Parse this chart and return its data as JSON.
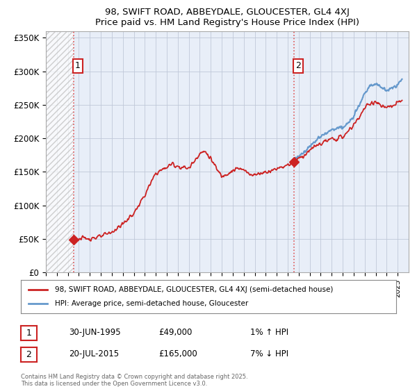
{
  "title_line1": "98, SWIFT ROAD, ABBEYDALE, GLOUCESTER, GL4 4XJ",
  "title_line2": "Price paid vs. HM Land Registry's House Price Index (HPI)",
  "ylim": [
    0,
    360000
  ],
  "yticks": [
    0,
    50000,
    100000,
    150000,
    200000,
    250000,
    300000,
    350000
  ],
  "ytick_labels": [
    "£0",
    "£50K",
    "£100K",
    "£150K",
    "£200K",
    "£250K",
    "£300K",
    "£350K"
  ],
  "sale1_date": 1995.5,
  "sale1_price": 49000,
  "sale2_date": 2015.55,
  "sale2_price": 165000,
  "hpi_color": "#6699cc",
  "price_color": "#cc2222",
  "annotation1_label": "1",
  "annotation2_label": "2",
  "legend_label1": "98, SWIFT ROAD, ABBEYDALE, GLOUCESTER, GL4 4XJ (semi-detached house)",
  "legend_label2": "HPI: Average price, semi-detached house, Gloucester",
  "info1_num": "1",
  "info1_date": "30-JUN-1995",
  "info1_price": "£49,000",
  "info1_hpi": "1% ↑ HPI",
  "info2_num": "2",
  "info2_date": "20-JUL-2015",
  "info2_price": "£165,000",
  "info2_hpi": "7% ↓ HPI",
  "footer": "Contains HM Land Registry data © Crown copyright and database right 2025.\nThis data is licensed under the Open Government Licence v3.0.",
  "xmin": 1993,
  "xmax": 2026,
  "bg_color": "#e8eef8",
  "grid_color": "#c0c8d8"
}
